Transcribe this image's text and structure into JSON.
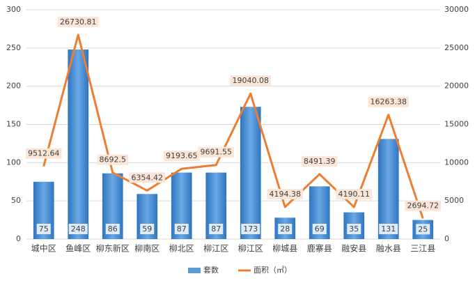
{
  "chart_data": {
    "type": "bar-line",
    "categories": [
      "城中区",
      "鱼峰区",
      "柳东新区",
      "柳南区",
      "柳北区",
      "柳江区",
      "柳江区",
      "柳城县",
      "鹿寨县",
      "融安县",
      "融水县",
      "三江县"
    ],
    "series": [
      {
        "name": "套数",
        "type": "bar",
        "color": "#5b9bd5",
        "values": [
          75,
          248,
          86,
          59,
          87,
          87,
          173,
          28,
          69,
          35,
          131,
          25
        ]
      },
      {
        "name": "面积（㎡）",
        "type": "line",
        "axis": "y2",
        "color": "#ed7d31",
        "values": [
          9512.64,
          26730.81,
          8692.5,
          6354.42,
          9193.65,
          9691.55,
          19040.08,
          4194.38,
          8491.39,
          4190.11,
          16263.38,
          2694.72
        ]
      }
    ],
    "ylim": [
      0,
      300
    ],
    "yticks": [
      0,
      50,
      100,
      150,
      200,
      250,
      300
    ],
    "y2lim": [
      0,
      30000
    ],
    "y2ticks": [
      0,
      5000,
      10000,
      15000,
      20000,
      25000,
      30000
    ],
    "grid": true,
    "legend": "bottom"
  }
}
